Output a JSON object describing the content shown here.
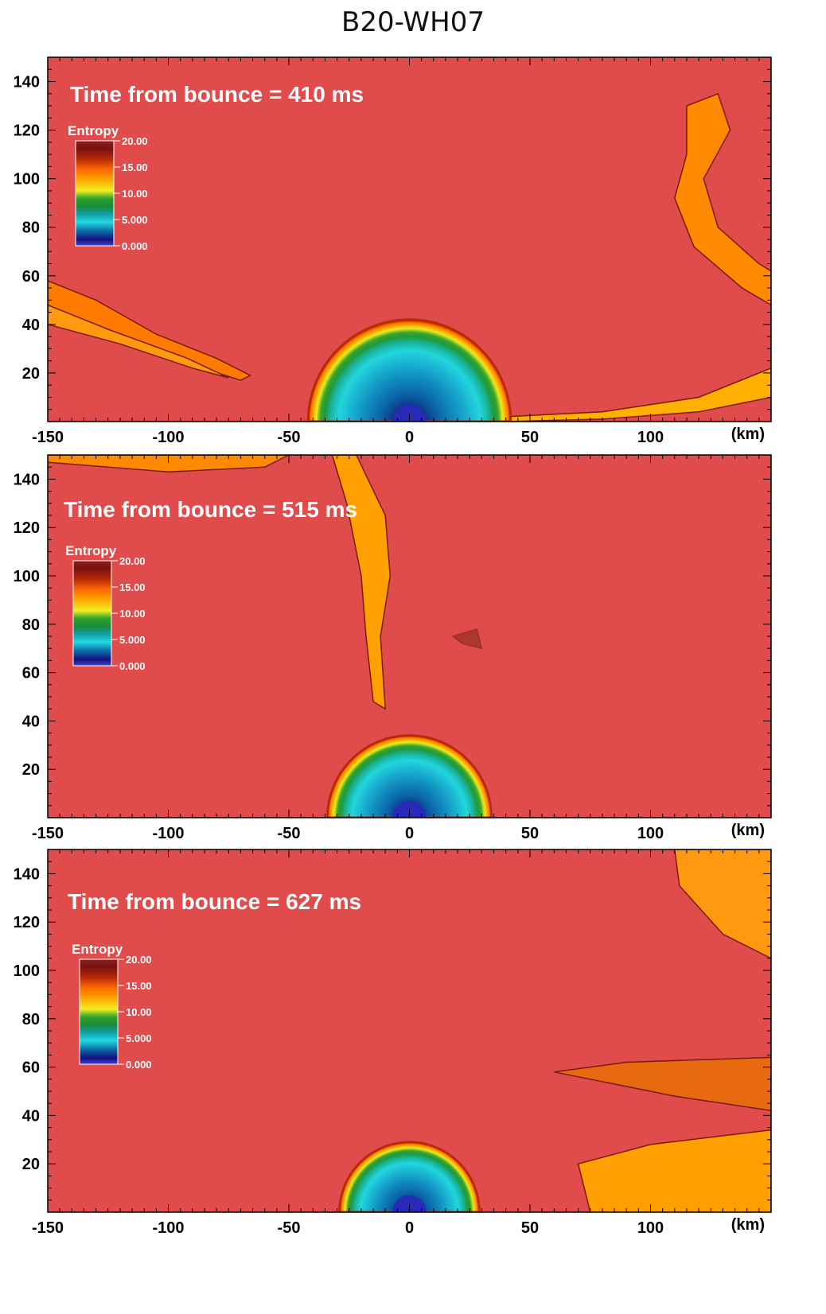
{
  "figure": {
    "title": "B20-WH07"
  },
  "colors": {
    "background": "#e04b4b",
    "colormap": [
      {
        "v": 0.0,
        "c": "#3f3fd8"
      },
      {
        "v": 1.2,
        "c": "#121280"
      },
      {
        "v": 2.6,
        "c": "#0b5fa0"
      },
      {
        "v": 4.5,
        "c": "#22d8e0"
      },
      {
        "v": 6.0,
        "c": "#11a0a8"
      },
      {
        "v": 7.5,
        "c": "#1a8a3a"
      },
      {
        "v": 9.0,
        "c": "#2ea12a"
      },
      {
        "v": 10.5,
        "c": "#f0ee22"
      },
      {
        "v": 12.5,
        "c": "#ffa800"
      },
      {
        "v": 14.5,
        "c": "#ff6a00"
      },
      {
        "v": 16.5,
        "c": "#b82a08"
      },
      {
        "v": 18.5,
        "c": "#7a1010"
      },
      {
        "v": 20.0,
        "c": "#8a2020"
      }
    ]
  },
  "chart_data": [
    {
      "type": "heatmap",
      "time_label": "Time from bounce = 410 ms",
      "time_ms": 410,
      "colorbar": {
        "title": "Entropy",
        "ticks": [
          "20.00",
          "15.00",
          "10.00",
          "5.000",
          "0.000"
        ],
        "range": [
          0,
          20
        ]
      },
      "x_ticks": [
        "-150",
        "-100",
        "-50",
        "0",
        "50",
        "100"
      ],
      "x_tick_values": [
        -150,
        -100,
        -50,
        0,
        50,
        100
      ],
      "x_unit": "(km)",
      "y_ticks": [
        "140",
        "120",
        "100",
        "80",
        "60",
        "40",
        "20"
      ],
      "y_tick_values": [
        140,
        120,
        100,
        80,
        60,
        40,
        20
      ],
      "xlim": [
        -150,
        150
      ],
      "ylim": [
        0,
        150
      ],
      "shock_radius_km": 42,
      "inner_core_radius_km": 7
    },
    {
      "type": "heatmap",
      "time_label": "Time from bounce = 515 ms",
      "time_ms": 515,
      "colorbar": {
        "title": "Entropy",
        "ticks": [
          "20.00",
          "15.00",
          "10.00",
          "5.000",
          "0.000"
        ],
        "range": [
          0,
          20
        ]
      },
      "x_ticks": [
        "-150",
        "-100",
        "-50",
        "0",
        "50",
        "100"
      ],
      "x_tick_values": [
        -150,
        -100,
        -50,
        0,
        50,
        100
      ],
      "x_unit": "(km)",
      "y_ticks": [
        "140",
        "120",
        "100",
        "80",
        "60",
        "40",
        "20"
      ],
      "y_tick_values": [
        140,
        120,
        100,
        80,
        60,
        40,
        20
      ],
      "xlim": [
        -150,
        150
      ],
      "ylim": [
        0,
        150
      ],
      "shock_radius_km": 34,
      "inner_core_radius_km": 7
    },
    {
      "type": "heatmap",
      "time_label": "Time from bounce = 627 ms",
      "time_ms": 627,
      "colorbar": {
        "title": "Entropy",
        "ticks": [
          "20.00",
          "15.00",
          "10.00",
          "5.000",
          "0.000"
        ],
        "range": [
          0,
          20
        ]
      },
      "x_ticks": [
        "-150",
        "-100",
        "-50",
        "0",
        "50",
        "100"
      ],
      "x_tick_values": [
        -150,
        -100,
        -50,
        0,
        50,
        100
      ],
      "x_unit": "(km)",
      "y_ticks": [
        "140",
        "120",
        "100",
        "80",
        "60",
        "40",
        "20"
      ],
      "y_tick_values": [
        140,
        120,
        100,
        80,
        60,
        40,
        20
      ],
      "xlim": [
        -150,
        150
      ],
      "ylim": [
        0,
        150
      ],
      "shock_radius_km": 29,
      "inner_core_radius_km": 7
    }
  ]
}
